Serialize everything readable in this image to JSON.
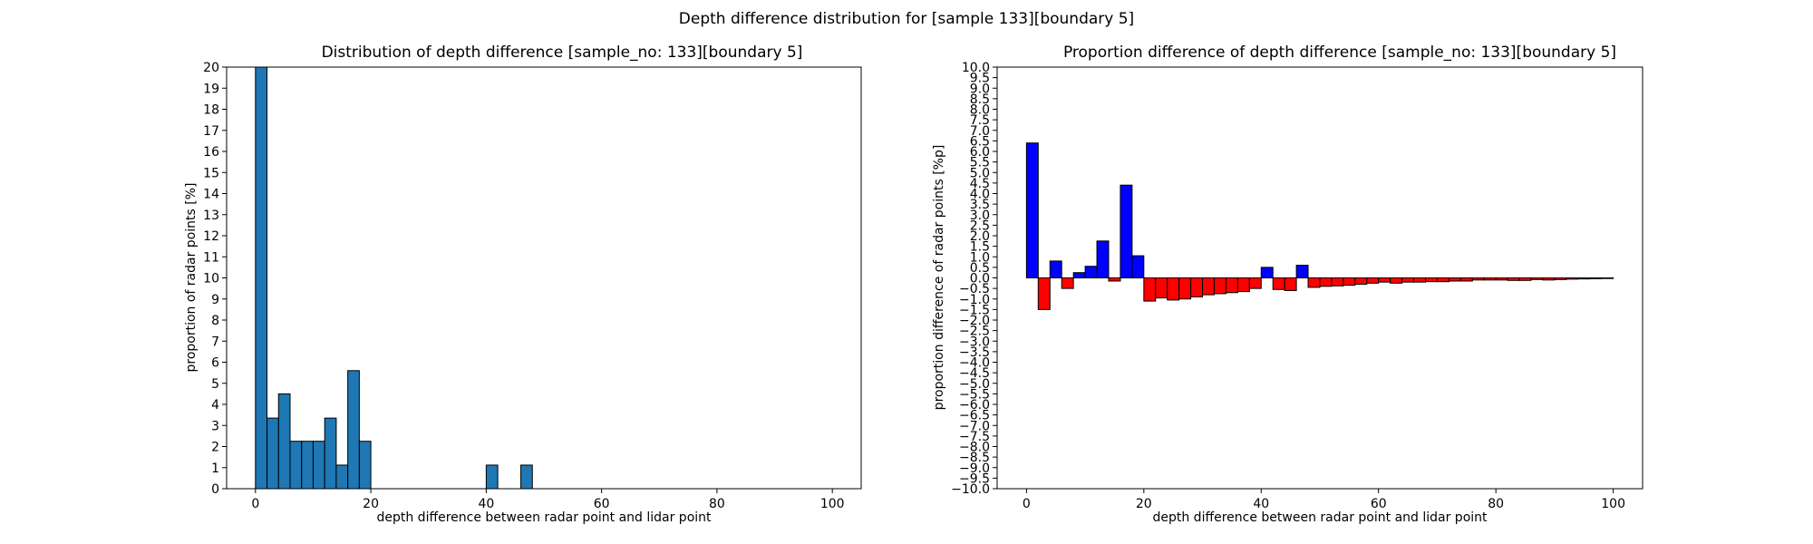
{
  "suptitle": "Depth difference distribution for [sample 133][boundary 5]",
  "chart_data": [
    {
      "type": "bar",
      "title": "Distribution of depth difference [sample_no: 133][boundary 5]",
      "xlabel": "depth difference between radar point and lidar point",
      "ylabel": "proportion of radar points [%]",
      "xlim": [
        -5,
        105
      ],
      "ylim": [
        0,
        20
      ],
      "xticks": [
        0,
        20,
        40,
        60,
        80,
        100
      ],
      "yticks": [
        0,
        1,
        2,
        3,
        4,
        5,
        6,
        7,
        8,
        9,
        10,
        11,
        12,
        13,
        14,
        15,
        16,
        17,
        18,
        19,
        20
      ],
      "bin_width": 2,
      "bin_start": 0,
      "values": [
        20,
        3.35,
        4.5,
        2.25,
        2.25,
        2.25,
        3.35,
        1.12,
        5.6,
        2.25,
        0,
        0,
        0,
        0,
        0,
        0,
        0,
        0,
        0,
        0,
        1.12,
        0,
        0,
        1.12
      ],
      "bar_color": "#1f77b4",
      "edge_color": "#000000",
      "grid": false
    },
    {
      "type": "bar",
      "title": "Proportion difference of depth difference [sample_no: 133][boundary 5]",
      "xlabel": "depth difference between radar point and lidar point",
      "ylabel": "proportion difference of radar points [%p]",
      "xlim": [
        -5,
        105
      ],
      "ylim": [
        -10,
        10
      ],
      "xticks": [
        0,
        20,
        40,
        60,
        80,
        100
      ],
      "ytick_step": 0.5,
      "bin_width": 2,
      "bin_start": 0,
      "values": [
        6.4,
        -1.5,
        0.8,
        -0.5,
        0.25,
        0.55,
        1.75,
        -0.15,
        4.4,
        1.05,
        -1.1,
        -0.95,
        -1.05,
        -1.0,
        -0.9,
        -0.8,
        -0.75,
        -0.7,
        -0.65,
        -0.5,
        0.5,
        -0.55,
        -0.6,
        0.6,
        -0.45,
        -0.4,
        -0.38,
        -0.35,
        -0.3,
        -0.25,
        -0.2,
        -0.25,
        -0.2,
        -0.2,
        -0.18,
        -0.18,
        -0.15,
        -0.15,
        -0.1,
        -0.1,
        -0.1,
        -0.12,
        -0.12,
        -0.08,
        -0.1,
        -0.08,
        -0.06,
        -0.05,
        -0.04,
        -0.03
      ],
      "positive_color": "#0000ff",
      "negative_color": "#ff0000",
      "edge_color": "#000000",
      "grid": false
    }
  ]
}
